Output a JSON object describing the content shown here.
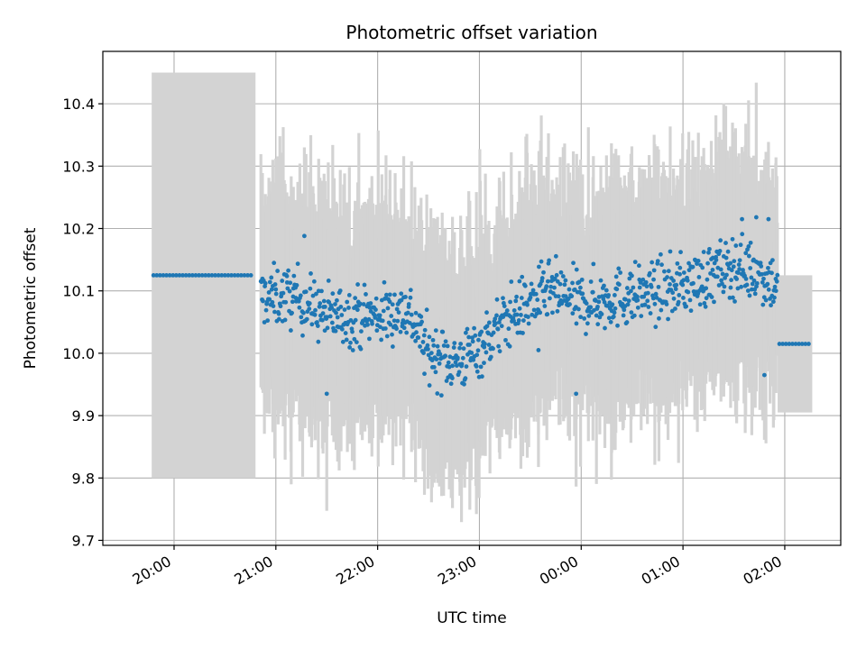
{
  "chart_data": {
    "type": "scatter",
    "title": "Photometric offset variation",
    "xlabel": "UTC time",
    "ylabel": "Photometric offset",
    "x_unit": "hours (UTC, times after midnight shown as 24+)",
    "xlim": [
      19.3,
      26.55
    ],
    "ylim": [
      9.692,
      10.484
    ],
    "x_ticks": [
      {
        "value": 20,
        "label": "20:00"
      },
      {
        "value": 21,
        "label": "21:00"
      },
      {
        "value": 22,
        "label": "22:00"
      },
      {
        "value": 23,
        "label": "23:00"
      },
      {
        "value": 24,
        "label": "00:00"
      },
      {
        "value": 25,
        "label": "01:00"
      },
      {
        "value": 26,
        "label": "02:00"
      }
    ],
    "y_ticks": [
      {
        "value": 9.7,
        "label": "9.7"
      },
      {
        "value": 9.8,
        "label": "9.8"
      },
      {
        "value": 9.9,
        "label": "9.9"
      },
      {
        "value": 10.0,
        "label": "10.0"
      },
      {
        "value": 10.1,
        "label": "10.1"
      },
      {
        "value": 10.2,
        "label": "10.2"
      },
      {
        "value": 10.3,
        "label": "10.3"
      },
      {
        "value": 10.4,
        "label": "10.4"
      }
    ],
    "grid": true,
    "colors": {
      "points": "#1f77b4",
      "errorbars": "#d3d3d3",
      "grid": "#b0b0b0",
      "axes": "#000000"
    },
    "flat_segments": [
      {
        "x_start": 19.78,
        "x_end": 20.8,
        "y": 10.125,
        "y_low": 9.8,
        "y_high": 10.45
      },
      {
        "x_start": 25.93,
        "x_end": 26.27,
        "y": 10.015,
        "y_low": 9.905,
        "y_high": 10.125
      }
    ],
    "trend": [
      {
        "x": 20.85,
        "y": 10.09
      },
      {
        "x": 21.2,
        "y": 10.09
      },
      {
        "x": 21.5,
        "y": 10.06
      },
      {
        "x": 22.0,
        "y": 10.06
      },
      {
        "x": 22.3,
        "y": 10.07
      },
      {
        "x": 22.5,
        "y": 10.0
      },
      {
        "x": 22.8,
        "y": 9.985
      },
      {
        "x": 23.0,
        "y": 10.01
      },
      {
        "x": 23.3,
        "y": 10.06
      },
      {
        "x": 23.7,
        "y": 10.1
      },
      {
        "x": 24.0,
        "y": 10.08
      },
      {
        "x": 24.4,
        "y": 10.09
      },
      {
        "x": 24.8,
        "y": 10.1
      },
      {
        "x": 25.2,
        "y": 10.12
      },
      {
        "x": 25.5,
        "y": 10.14
      },
      {
        "x": 25.75,
        "y": 10.13
      },
      {
        "x": 25.92,
        "y": 10.11
      }
    ],
    "scatter_range": {
      "x_start": 20.85,
      "x_end": 25.93,
      "n_points": 900
    },
    "outliers": [
      {
        "x": 21.5,
        "y": 9.935
      },
      {
        "x": 21.28,
        "y": 10.188
      },
      {
        "x": 23.58,
        "y": 10.005
      },
      {
        "x": 23.95,
        "y": 9.935
      },
      {
        "x": 25.72,
        "y": 10.218
      },
      {
        "x": 25.58,
        "y": 10.215
      },
      {
        "x": 25.84,
        "y": 10.215
      },
      {
        "x": 25.8,
        "y": 9.965
      }
    ]
  }
}
